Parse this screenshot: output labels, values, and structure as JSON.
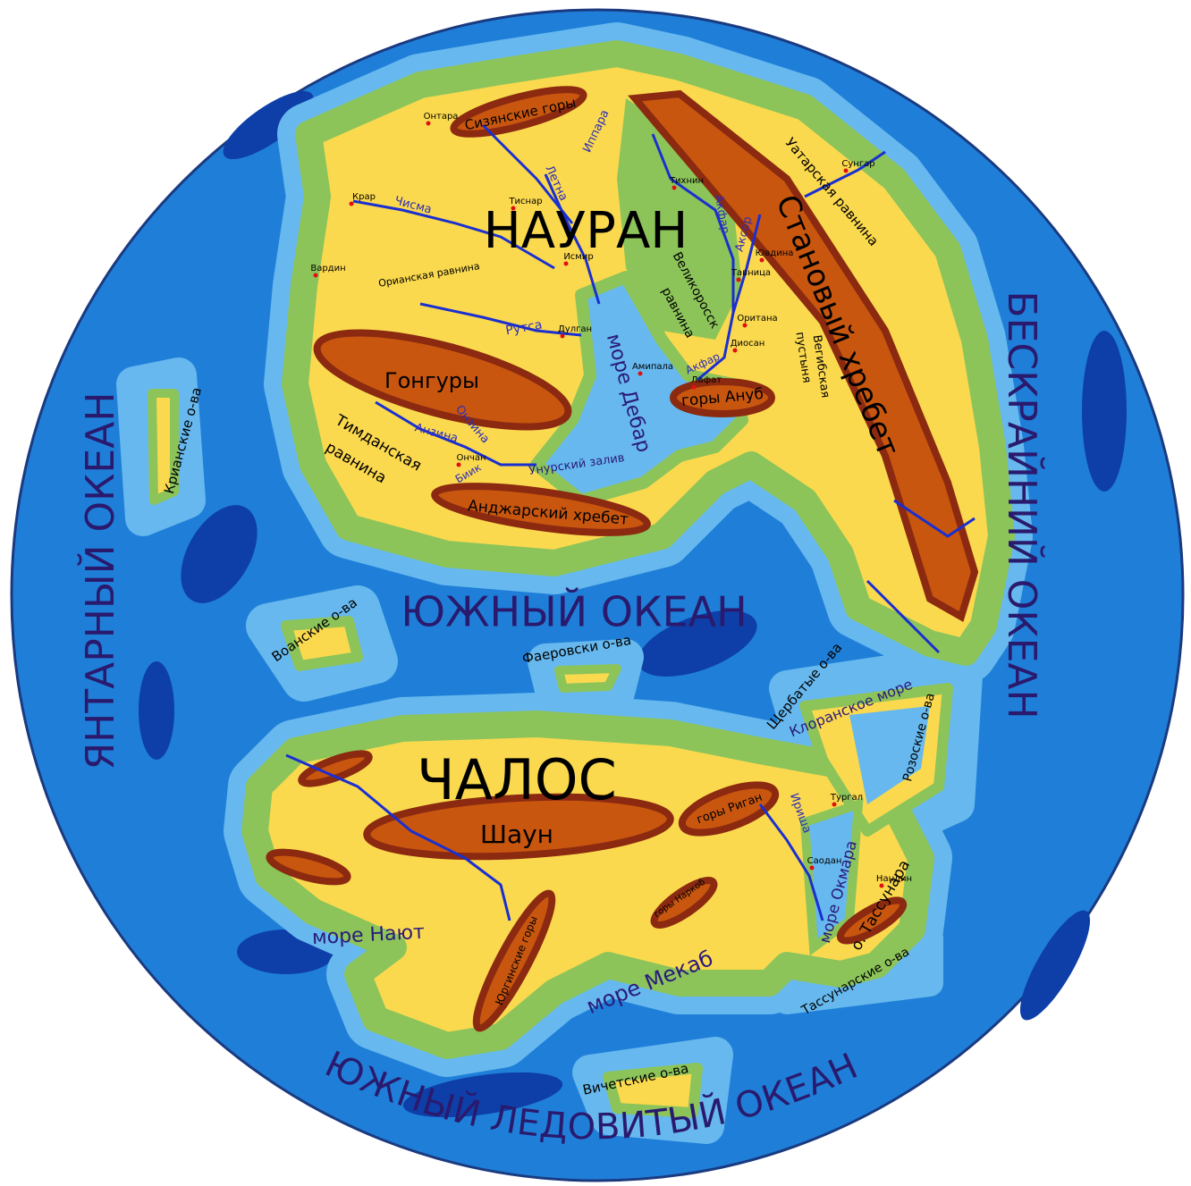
{
  "continents": [
    "НАУРАН",
    "ЧАЛОС"
  ],
  "oceans": [
    "ЯНТАРНЫЙ ОКЕАН",
    "БЕСКРАЙНИЙ ОКЕАН",
    "ЮЖНЫЙ ОКЕАН",
    "ЮЖНЫЙ ЛЕДОВИТЫЙ ОКЕАН"
  ],
  "mountains": [
    "Сизянские горы",
    "Становый хребет",
    "Гонгуры",
    "горы Ануб",
    "Анджарский хребет",
    "Шаун",
    "горы Риган",
    "горы Наркоб",
    "Юргинские горы"
  ],
  "plains": [
    [
      "Уатарская равнина"
    ],
    [
      "Орианская равнина"
    ],
    [
      "Великоросск",
      "равнина"
    ],
    [
      "Вегибская",
      "пустыня"
    ],
    [
      "Тимданская",
      "равнина"
    ]
  ],
  "seas": [
    "море Дебар",
    "Унурский залив",
    "Клоранское море",
    "море Нают",
    "море Мекаб",
    "море Окмара"
  ],
  "islands": [
    "Крианские о-ва",
    "Воанские о-ва",
    "Фаеровски о-ва",
    "Щербатые о-ва",
    "Розоские о-ва",
    "о. Тассунара",
    "Тассунарские о-ва",
    "Вичетские о-ва"
  ],
  "rivers": [
    "Чисма",
    "Летна",
    "Иппара",
    "Акфар",
    "Аксор",
    "Рутса",
    "Онзина",
    "Анзина",
    "Биик",
    "Акфар",
    "Ириша"
  ],
  "cities": [
    "Онтара",
    "Крар",
    "Вардин",
    "Тиснар",
    "Исмир",
    "Тихнин",
    "Сунгар",
    "Ювдина",
    "Тавница",
    "Оритана",
    "Диосан",
    "Дулган",
    "Амипала",
    "Лафат",
    "Ончан",
    "Тургал",
    "Саодан",
    "Нандин"
  ]
}
